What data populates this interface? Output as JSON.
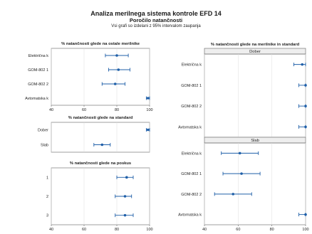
{
  "header": {
    "title": "Analiza merilnega sistema kontrole EFD 14",
    "subtitle": "Poročilo natančnosti",
    "note": "Vsi grafi so izdelani z 95% intervalom zaupanja"
  },
  "colors": {
    "marker": "#1f5fa8",
    "panel_border": "#777777",
    "grid": "#dddddd",
    "strip_bg": "#eeeeee"
  },
  "chart_data": [
    {
      "type": "scatter",
      "title": "% natančnosti glede na ostale merilnike",
      "categories": [
        "Električna k",
        "GOM-802 1",
        "GOM-802 2",
        "Avtomatska k"
      ],
      "xlim": [
        40,
        100
      ],
      "xticks": [
        40,
        60,
        80,
        100
      ],
      "show_xticks": true,
      "points": [
        {
          "estimate": 80,
          "lower": 73,
          "upper": 87
        },
        {
          "estimate": 81,
          "lower": 75,
          "upper": 88
        },
        {
          "estimate": 79,
          "lower": 71,
          "upper": 85
        },
        {
          "estimate": 99,
          "lower": 98,
          "upper": 100
        }
      ]
    },
    {
      "type": "scatter",
      "title": "% natančnosti glede na standard",
      "categories": [
        "Dober",
        "Slab"
      ],
      "xlim": [
        40,
        100
      ],
      "xticks": [
        40,
        60,
        80,
        100
      ],
      "show_xticks": false,
      "points": [
        {
          "estimate": 99,
          "lower": 98,
          "upper": 100
        },
        {
          "estimate": 71,
          "lower": 66,
          "upper": 76
        }
      ]
    },
    {
      "type": "scatter",
      "title": "% natančnosti glede na poskus",
      "categories": [
        "1",
        "2",
        "3"
      ],
      "xlim": [
        40,
        100
      ],
      "xticks": [
        40,
        60,
        80,
        100
      ],
      "show_xticks": true,
      "points": [
        {
          "estimate": 86,
          "lower": 80,
          "upper": 90
        },
        {
          "estimate": 85,
          "lower": 79,
          "upper": 89
        },
        {
          "estimate": 85,
          "lower": 79,
          "upper": 90
        }
      ]
    },
    {
      "type": "scatter",
      "title": "% natančnosti glede na merilnike in standard",
      "xlim": [
        40,
        100
      ],
      "xticks": [
        40,
        60,
        80,
        100
      ],
      "show_xticks": true,
      "panels": [
        {
          "strip": "Dober",
          "categories": [
            "Električna k",
            "GOM-802 1",
            "GOM-802 2",
            "Avtomatska k"
          ],
          "points": [
            {
              "estimate": 98,
              "lower": 93,
              "upper": 100
            },
            {
              "estimate": 100,
              "lower": 96,
              "upper": 100
            },
            {
              "estimate": 100,
              "lower": 96,
              "upper": 100
            },
            {
              "estimate": 100,
              "lower": 96,
              "upper": 100
            }
          ]
        },
        {
          "strip": "Slab",
          "categories": [
            "Električna k",
            "GOM-802 1",
            "GOM-802 2",
            "Avtomatska k"
          ],
          "points": [
            {
              "estimate": 61,
              "lower": 50,
              "upper": 72
            },
            {
              "estimate": 62,
              "lower": 51,
              "upper": 73
            },
            {
              "estimate": 57,
              "lower": 46,
              "upper": 68
            },
            {
              "estimate": 100,
              "lower": 96,
              "upper": 100
            }
          ]
        }
      ]
    }
  ]
}
